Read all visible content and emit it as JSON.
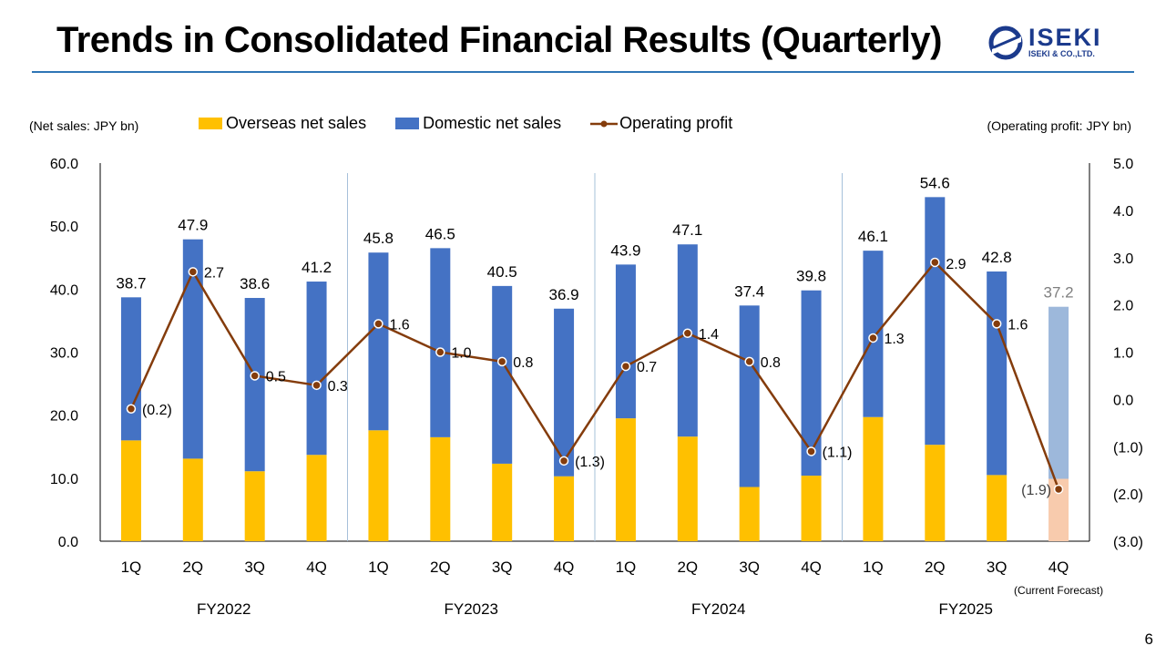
{
  "page": {
    "title": "Trends in Consolidated Financial Results (Quarterly)",
    "page_number": "6"
  },
  "logo": {
    "name": "ISEKI",
    "subtext": "ISEKI & CO.,LTD."
  },
  "units": {
    "left": "(Net sales: JPY bn)",
    "right": "(Operating profit: JPY bn)"
  },
  "legend": {
    "overseas": "Overseas net sales",
    "domestic": "Domestic net sales",
    "op": "Operating profit"
  },
  "colors": {
    "overseas": "#FFC000",
    "domestic": "#4472C4",
    "op": "#843C0C",
    "forecast_domestic": "#9DB8DB",
    "forecast_overseas": "#F8CBAD",
    "forecast_label": "#7F7F7F",
    "grid_divider": "#A6C0DA"
  },
  "chart_data": {
    "type": "bar",
    "title": "Trends in Consolidated Financial Results (Quarterly)",
    "categories": [
      "1Q",
      "2Q",
      "3Q",
      "4Q",
      "1Q",
      "2Q",
      "3Q",
      "4Q",
      "1Q",
      "2Q",
      "3Q",
      "4Q",
      "1Q",
      "2Q",
      "3Q",
      "4Q"
    ],
    "fiscal_years": [
      "FY2022",
      "FY2023",
      "FY2024",
      "FY2025"
    ],
    "forecast_note": "(Current Forecast)",
    "forecast_index": 15,
    "series": [
      {
        "name": "Overseas net sales",
        "type": "stacked-bar",
        "values": [
          16.0,
          13.1,
          11.1,
          13.7,
          17.6,
          16.5,
          12.3,
          10.3,
          19.5,
          16.6,
          8.6,
          10.4,
          19.7,
          15.3,
          10.5,
          9.9
        ]
      },
      {
        "name": "Domestic net sales",
        "type": "stacked-bar",
        "values": [
          22.7,
          34.8,
          27.5,
          27.5,
          28.2,
          30.0,
          28.2,
          26.6,
          24.4,
          30.5,
          28.8,
          29.4,
          26.4,
          39.3,
          32.3,
          27.3
        ]
      },
      {
        "name": "Operating profit",
        "type": "line",
        "axis": "right",
        "values": [
          -0.2,
          2.7,
          0.5,
          0.3,
          1.6,
          1.0,
          0.8,
          -1.3,
          0.7,
          1.4,
          0.8,
          -1.1,
          1.3,
          2.9,
          1.6,
          -1.9
        ]
      }
    ],
    "total_labels": [
      "38.7",
      "47.9",
      "38.6",
      "41.2",
      "45.8",
      "46.5",
      "40.5",
      "36.9",
      "43.9",
      "47.1",
      "37.4",
      "39.8",
      "46.1",
      "54.6",
      "42.8",
      "37.2"
    ],
    "op_labels": [
      "(0.2)",
      "2.7",
      "0.5",
      "0.3",
      "1.6",
      "1.0",
      "0.8",
      "(1.3)",
      "0.7",
      "1.4",
      "0.8",
      "(1.1)",
      "1.3",
      "2.9",
      "1.6",
      "(1.9)"
    ],
    "y_left": {
      "min": 0,
      "max": 60,
      "ticks": [
        "0.0",
        "10.0",
        "20.0",
        "30.0",
        "40.0",
        "50.0",
        "60.0"
      ]
    },
    "y_right": {
      "min": -3,
      "max": 5,
      "ticks": [
        "(3.0)",
        "(2.0)",
        "(1.0)",
        "0.0",
        "1.0",
        "2.0",
        "3.0",
        "4.0",
        "5.0"
      ]
    },
    "grid": false,
    "legend_position": "top"
  }
}
